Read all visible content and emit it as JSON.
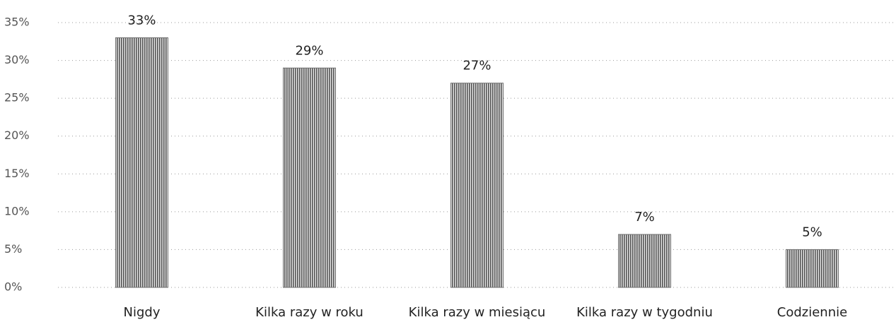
{
  "chart_data": {
    "type": "bar",
    "categories": [
      "Nigdy",
      "Kilka razy w roku",
      "Kilka razy w miesiącu",
      "Kilka razy w tygodniu",
      "Codziennie"
    ],
    "values": [
      33,
      29,
      27,
      7,
      5
    ],
    "value_labels": [
      "33%",
      "29%",
      "27%",
      "7%",
      "5%"
    ],
    "color": "#6e6e6e",
    "ylim": [
      0,
      35
    ],
    "yticks": [
      {
        "value": 0,
        "label": "0%"
      },
      {
        "value": 5,
        "label": "5%"
      },
      {
        "value": 10,
        "label": "10%"
      },
      {
        "value": 15,
        "label": "15%"
      },
      {
        "value": 20,
        "label": "20%"
      },
      {
        "value": 25,
        "label": "25%"
      },
      {
        "value": 30,
        "label": "30%"
      },
      {
        "value": 35,
        "label": "35%"
      }
    ],
    "grid": true
  }
}
